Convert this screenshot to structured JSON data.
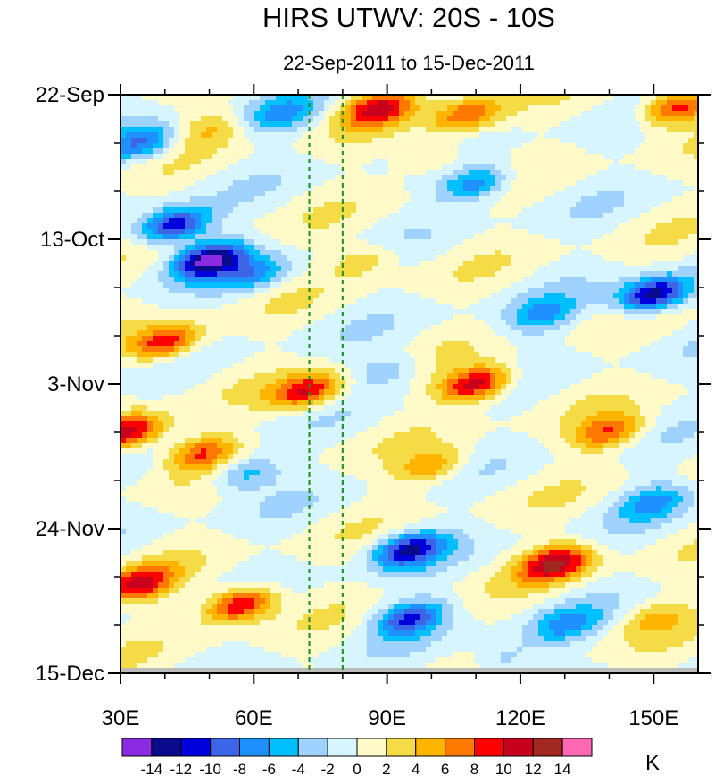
{
  "chart_data": {
    "type": "heatmap",
    "title": "HIRS UTWV: 20S - 10S",
    "subtitle": "22-Sep-2011 to 15-Dec-2011",
    "xlabel": "",
    "ylabel": "",
    "x_range": [
      30,
      160
    ],
    "x_ticks": [
      {
        "value": 30,
        "label": "30E"
      },
      {
        "value": 60,
        "label": "60E"
      },
      {
        "value": 90,
        "label": "90E"
      },
      {
        "value": 120,
        "label": "120E"
      },
      {
        "value": 150,
        "label": "150E"
      }
    ],
    "y_range_days": [
      0,
      84
    ],
    "y_ticks": [
      {
        "day": 0,
        "label": "22-Sep"
      },
      {
        "day": 21,
        "label": "13-Oct"
      },
      {
        "day": 42,
        "label": "3-Nov"
      },
      {
        "day": 63,
        "label": "24-Nov"
      },
      {
        "day": 84,
        "label": "15-Dec"
      }
    ],
    "reference_lines_lon": [
      72.5,
      80
    ],
    "colorbar": {
      "unit": "K",
      "levels": [
        -14,
        -12,
        -10,
        -8,
        -6,
        -4,
        -2,
        0,
        2,
        4,
        6,
        8,
        10,
        12,
        14
      ],
      "labels": [
        "-14",
        "-12",
        "-10",
        "-8",
        "-6",
        "-4",
        "-2",
        "0",
        "2",
        "4",
        "6",
        "8",
        "10",
        "12",
        "14"
      ],
      "colors": [
        "#8a2be2",
        "#0a0a8c",
        "#0000dd",
        "#3c64e6",
        "#1e90ff",
        "#00bfff",
        "#a0d2ff",
        "#d7f5ff",
        "#fffac8",
        "#f5dc46",
        "#ffb400",
        "#ff7800",
        "#ff0000",
        "#c8001e",
        "#a0281e",
        "#ff69b4"
      ]
    },
    "features": [
      {
        "lon": 108,
        "day": 3,
        "value": 8
      },
      {
        "lon": 88,
        "day": 2,
        "value": 10
      },
      {
        "lon": 155,
        "day": 2,
        "value": 10
      },
      {
        "lon": 66,
        "day": 3,
        "value": -6
      },
      {
        "lon": 35,
        "day": 7,
        "value": -8
      },
      {
        "lon": 50,
        "day": 5,
        "value": 4
      },
      {
        "lon": 100,
        "day": 9,
        "value": 4
      },
      {
        "lon": 110,
        "day": 13,
        "value": -8
      },
      {
        "lon": 42,
        "day": 19,
        "value": -12
      },
      {
        "lon": 50,
        "day": 24,
        "value": -14
      },
      {
        "lon": 60,
        "day": 26,
        "value": -6
      },
      {
        "lon": 150,
        "day": 29,
        "value": -14
      },
      {
        "lon": 125,
        "day": 32,
        "value": -6
      },
      {
        "lon": 85,
        "day": 24,
        "value": 4
      },
      {
        "lon": 40,
        "day": 36,
        "value": 10
      },
      {
        "lon": 72,
        "day": 43,
        "value": 10
      },
      {
        "lon": 110,
        "day": 42,
        "value": 12
      },
      {
        "lon": 90,
        "day": 40,
        "value": -4
      },
      {
        "lon": 32,
        "day": 49,
        "value": 12
      },
      {
        "lon": 48,
        "day": 52,
        "value": 8
      },
      {
        "lon": 58,
        "day": 55,
        "value": -6
      },
      {
        "lon": 100,
        "day": 54,
        "value": 6
      },
      {
        "lon": 140,
        "day": 49,
        "value": 8
      },
      {
        "lon": 150,
        "day": 59,
        "value": -6
      },
      {
        "lon": 95,
        "day": 66,
        "value": -12
      },
      {
        "lon": 128,
        "day": 68,
        "value": 12
      },
      {
        "lon": 34,
        "day": 71,
        "value": 10
      },
      {
        "lon": 57,
        "day": 74,
        "value": 12
      },
      {
        "lon": 95,
        "day": 76,
        "value": -10
      },
      {
        "lon": 130,
        "day": 77,
        "value": -6
      },
      {
        "lon": 116,
        "day": 82,
        "value": -4
      },
      {
        "lon": 150,
        "day": 76,
        "value": 4
      }
    ]
  }
}
